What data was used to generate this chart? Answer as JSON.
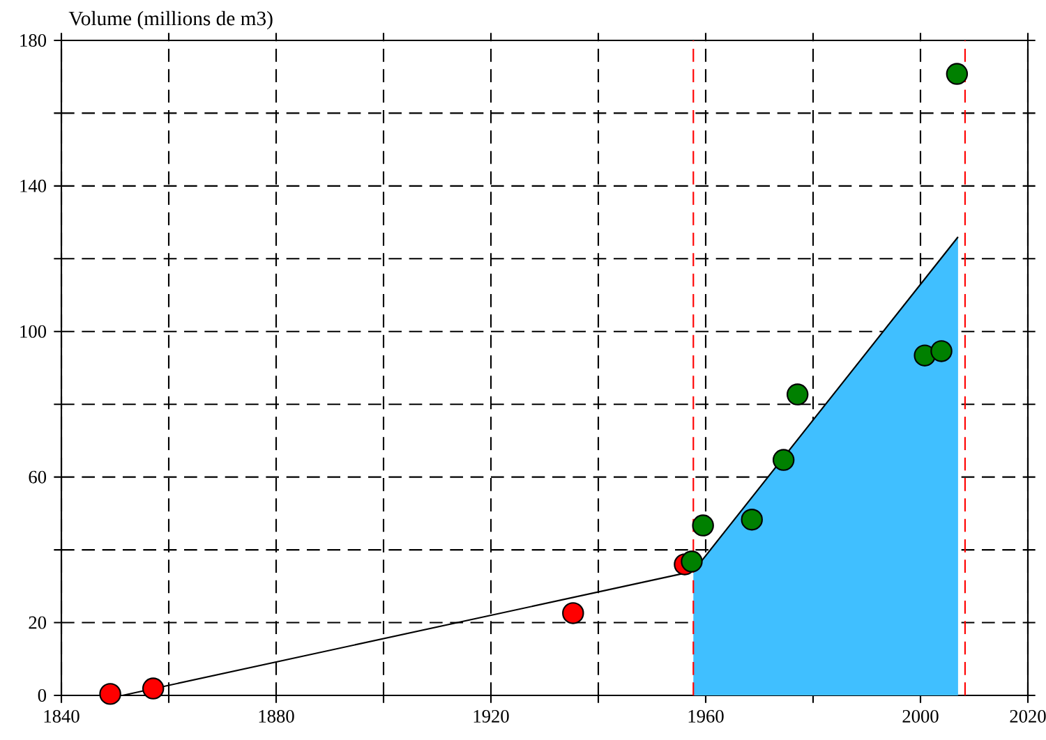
{
  "chart_data": {
    "type": "scatter",
    "ylabel": "Volume (millions de m3)",
    "xlim": [
      1840,
      2020
    ],
    "ylim": [
      0,
      180
    ],
    "xticks": [
      1840,
      {
        "value": 1860,
        "label": null
      },
      1880,
      {
        "value": 1900,
        "label": null
      },
      1920,
      {
        "value": 1940,
        "label": null
      },
      1960,
      {
        "value": 1980,
        "label": null
      },
      2000,
      2020
    ],
    "yticks": [
      0,
      20,
      {
        "value": 40,
        "label": null
      },
      60,
      {
        "value": 80,
        "label": null
      },
      100,
      {
        "value": 120,
        "label": null
      },
      140,
      {
        "value": 160,
        "label": null
      },
      180
    ],
    "grid": true,
    "series": [
      {
        "type": "area",
        "color": "#40bfff",
        "marker": "none",
        "x": [
          1957.7,
          2007
        ],
        "values": [
          34.1,
          126
        ]
      },
      {
        "type": "line",
        "color": "#000000",
        "marker": "none",
        "x": [
          1851.4,
          1957.7,
          2007
        ],
        "values": [
          0,
          34.1,
          126
        ]
      },
      {
        "color": "#ff0000",
        "marker": "circle",
        "x": [
          1849.1,
          1857.1,
          1935.3,
          1956.1
        ],
        "values": [
          0.4,
          1.9,
          22.6,
          36
        ]
      },
      {
        "color": "#008000",
        "marker": "circle",
        "x": [
          1957.4,
          1959.5,
          1968.6,
          1974.5,
          1977.1,
          2000.8,
          2003.9,
          2006.8
        ],
        "values": [
          36.8,
          46.7,
          48.3,
          64.7,
          82.7,
          93.4,
          94.6,
          170.8
        ]
      }
    ],
    "ref_lines": [
      {
        "axis": "x",
        "value": 1957.7,
        "color": "#ff0000",
        "line_style": "dashed"
      },
      {
        "axis": "x",
        "value": 2008.3,
        "color": "#ff0000",
        "line_style": "dashed"
      }
    ]
  }
}
